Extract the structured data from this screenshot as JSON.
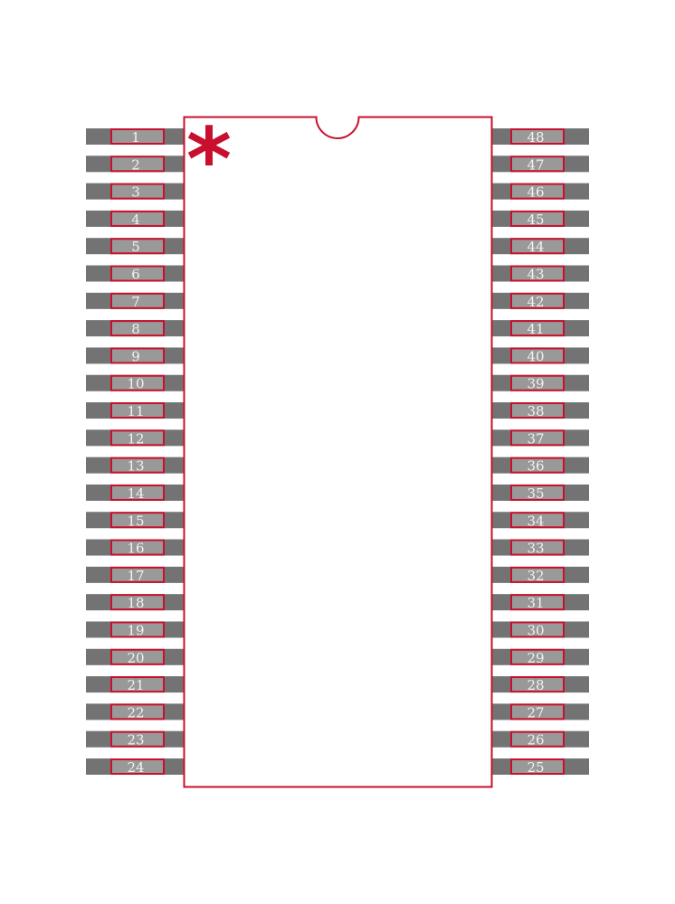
{
  "colors": {
    "outline": "#c8102e",
    "pad": "#737373",
    "pad_inner": "#999999",
    "label": "#f2f2f2"
  },
  "pin1_marker": "*",
  "left_pins": [
    "1",
    "2",
    "3",
    "4",
    "5",
    "6",
    "7",
    "8",
    "9",
    "10",
    "11",
    "12",
    "13",
    "14",
    "15",
    "16",
    "17",
    "18",
    "19",
    "20",
    "21",
    "22",
    "23",
    "24"
  ],
  "right_pins": [
    "48",
    "47",
    "46",
    "45",
    "44",
    "43",
    "42",
    "41",
    "40",
    "39",
    "38",
    "37",
    "36",
    "35",
    "34",
    "33",
    "32",
    "31",
    "30",
    "29",
    "28",
    "27",
    "26",
    "25"
  ]
}
